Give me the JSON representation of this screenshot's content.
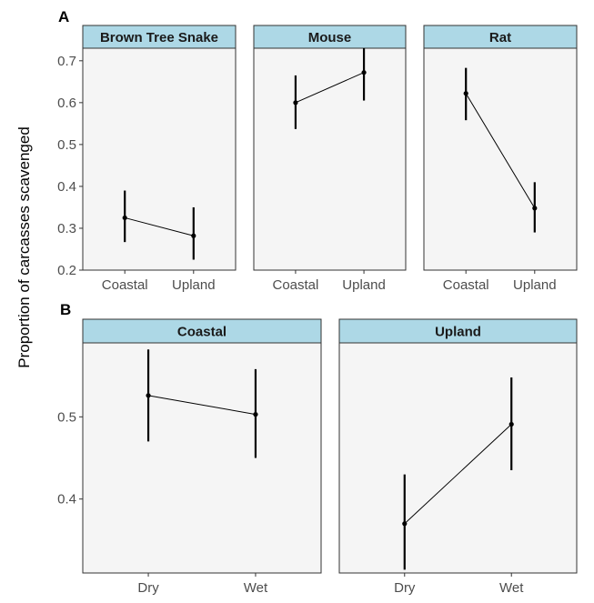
{
  "ylabel": "Proportion of carcasses scavenged",
  "colors": {
    "strip_fill": "#add8e6",
    "panel_bg": "#f5f5f5",
    "border": "#333333",
    "line": "#000000"
  },
  "chart_data": [
    {
      "type": "line",
      "panel_label": "A",
      "ylim": [
        0.2,
        0.73
      ],
      "yticks": [
        0.2,
        0.3,
        0.4,
        0.5,
        0.6,
        0.7
      ],
      "ytick_labels": [
        "0.2",
        "0.3",
        "0.4",
        "0.5",
        "0.6",
        "0.7"
      ],
      "facets": [
        {
          "title": "Brown Tree Snake",
          "categories": [
            "Coastal",
            "Upland"
          ],
          "values": [
            0.325,
            0.282
          ],
          "lower": [
            0.267,
            0.225
          ],
          "upper": [
            0.39,
            0.35
          ]
        },
        {
          "title": "Mouse",
          "categories": [
            "Coastal",
            "Upland"
          ],
          "values": [
            0.6,
            0.672
          ],
          "lower": [
            0.537,
            0.605
          ],
          "upper": [
            0.665,
            0.73
          ]
        },
        {
          "title": "Rat",
          "categories": [
            "Coastal",
            "Upland"
          ],
          "values": [
            0.622,
            0.348
          ],
          "lower": [
            0.558,
            0.29
          ],
          "upper": [
            0.683,
            0.41
          ]
        }
      ]
    },
    {
      "type": "line",
      "panel_label": "B",
      "ylim": [
        0.31,
        0.59
      ],
      "yticks": [
        0.4,
        0.5
      ],
      "ytick_labels": [
        "0.4",
        "0.5"
      ],
      "facets": [
        {
          "title": "Coastal",
          "categories": [
            "Dry",
            "Wet"
          ],
          "values": [
            0.526,
            0.503
          ],
          "lower": [
            0.47,
            0.45
          ],
          "upper": [
            0.582,
            0.558
          ]
        },
        {
          "title": "Upland",
          "categories": [
            "Dry",
            "Wet"
          ],
          "values": [
            0.37,
            0.491
          ],
          "lower": [
            0.314,
            0.435
          ],
          "upper": [
            0.43,
            0.548
          ]
        }
      ]
    }
  ]
}
